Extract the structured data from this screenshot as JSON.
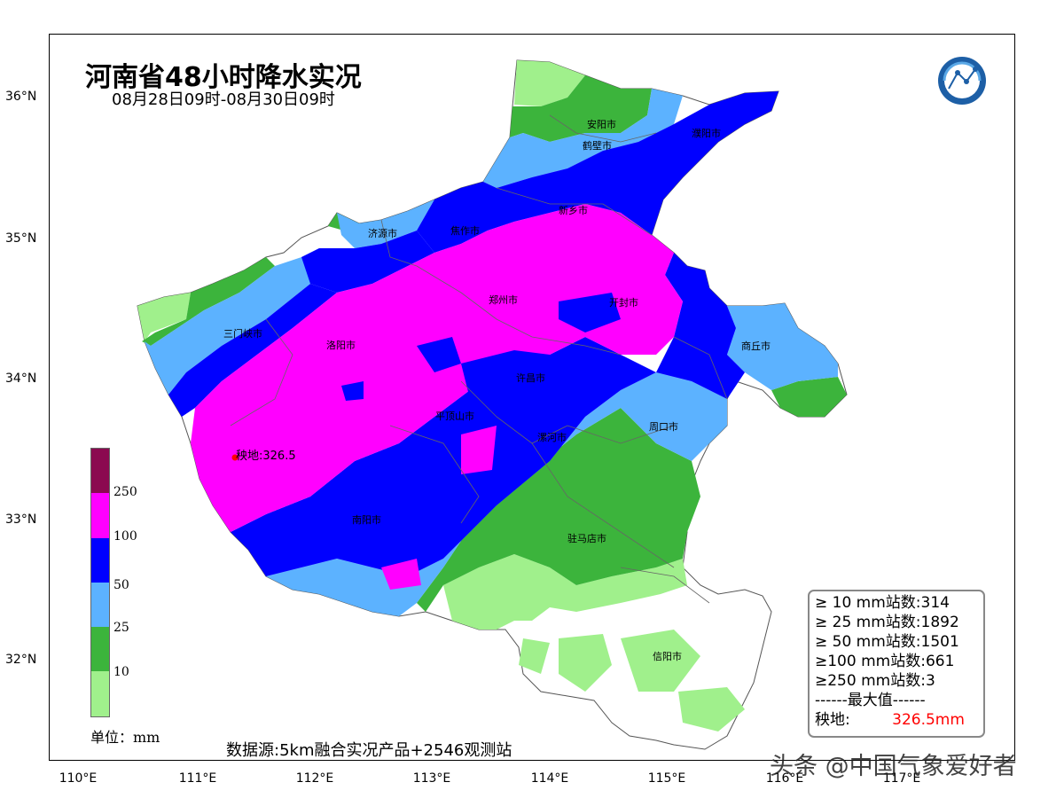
{
  "title": "河南省48小时降水实况",
  "subtitle": "08月28日09时-08月30日09时",
  "latitude_labels": [
    "36°N",
    "35°N",
    "34°N",
    "33°N",
    "32°N"
  ],
  "longitude_labels": [
    "110°E",
    "111°E",
    "112°E",
    "113°E",
    "114°E",
    "115°E",
    "116°E",
    "117°E"
  ],
  "cities": [
    {
      "name": "安阳市"
    },
    {
      "name": "鹤壁市"
    },
    {
      "name": "濮阳市"
    },
    {
      "name": "新乡市"
    },
    {
      "name": "济源市"
    },
    {
      "name": "焦作市"
    },
    {
      "name": "郑州市"
    },
    {
      "name": "开封市"
    },
    {
      "name": "三门峡市"
    },
    {
      "name": "洛阳市"
    },
    {
      "name": "许昌市"
    },
    {
      "name": "商丘市"
    },
    {
      "name": "平顶山市"
    },
    {
      "name": "漯河市"
    },
    {
      "name": "周口市"
    },
    {
      "name": "南阳市"
    },
    {
      "name": "驻马店市"
    },
    {
      "name": "信阳市"
    }
  ],
  "max_station": {
    "name": "秧地",
    "label": "秧地:326.5"
  },
  "legend": {
    "ticks": [
      "250",
      "100",
      "50",
      "25",
      "10"
    ],
    "unit": "单位：mm",
    "colors": [
      "#8b0a50",
      "#ff00ff",
      "#0000ff",
      "#5cb2ff",
      "#3cb43c",
      "#a0f08c"
    ]
  },
  "source": "数据源:5km融合实况产品+2546观测站",
  "stats": {
    "rows": [
      "≥ 10 mm站数:314",
      "≥ 25 mm站数:1892",
      "≥ 50 mm站数:1501",
      "≥100 mm站数:661",
      "≥250 mm站数:3"
    ],
    "divider": "------最大值------",
    "max_name": "秧地:",
    "max_value": "326.5mm"
  },
  "watermark": "头条 @中国气象爱好者"
}
